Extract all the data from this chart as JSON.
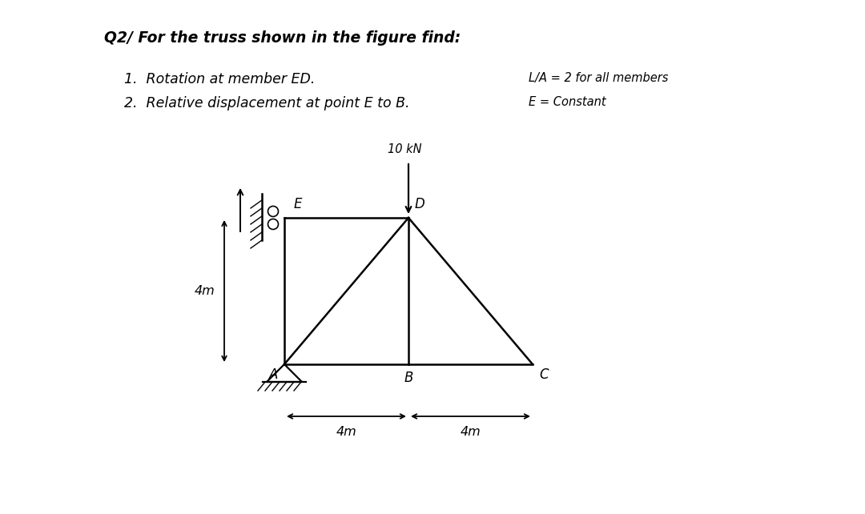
{
  "title_line1": "Q2/ For the truss shown in the figure find:",
  "item1": "1.  Rotation at member ED.",
  "item2": "2.  Relative displacement at point E to B.",
  "info1": "L/A = 2 for all members",
  "info2": "E = Constant",
  "load_label": "10 kN",
  "dim1": "4m",
  "dim2": "4m",
  "dim_vert": "4m",
  "members": [
    [
      "E",
      "D"
    ],
    [
      "E",
      "A"
    ],
    [
      "D",
      "B"
    ],
    [
      "A",
      "B"
    ],
    [
      "A",
      "D"
    ],
    [
      "D",
      "C"
    ],
    [
      "B",
      "C"
    ]
  ],
  "bg_color": "#ffffff",
  "line_color": "#000000"
}
